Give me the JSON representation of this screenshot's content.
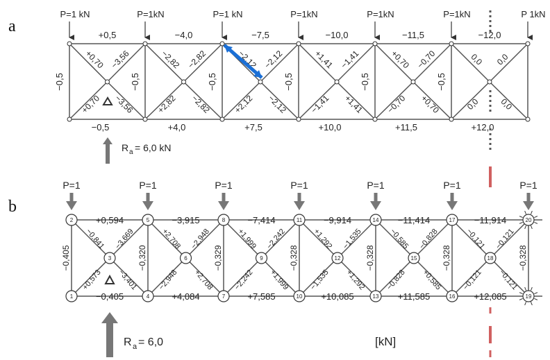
{
  "panel_a": {
    "letter": "a",
    "loads": [
      "P=1 kN",
      "P=1kN",
      "P=1 kN",
      "P=1kN",
      "P=1kN",
      "P=1kN",
      "P 1kN"
    ],
    "top_chords": [
      "+0,5",
      "−4,0",
      "−7,5",
      "−10,0",
      "−11,5",
      "−12,0"
    ],
    "bottom_chords": [
      "−0,5",
      "+4,0",
      "+7,5",
      "+10,0",
      "+11,5",
      "+12,0"
    ],
    "verticals": [
      "−0,5",
      "−0,5",
      "−0,5",
      "−0,5",
      "−0,5",
      "−0,5"
    ],
    "diag_outer": [
      "+0,70",
      "−3,56",
      "−2,82",
      "−2,82",
      "−2,12",
      "−2,12",
      "+1,41",
      "−1,41",
      "+0,70",
      "−0,70",
      "0,0",
      "0,0",
      "+0,70",
      "−3,56",
      "+2,82",
      "−2,82",
      "+2,12",
      "−2,12",
      "−1,41",
      "+1,41",
      "−0,70",
      "+0,70",
      "0,0",
      "0,0"
    ],
    "reaction": "R",
    "reaction_sub": "a",
    "reaction_value": "= 6,0 kN"
  },
  "panel_b": {
    "letter": "b",
    "loads": [
      "P=1",
      "P=1",
      "P=1",
      "P=1",
      "P=1",
      "P=1",
      "P=1"
    ],
    "nodes_top": [
      "2",
      "5",
      "8",
      "11",
      "14",
      "17",
      "20"
    ],
    "nodes_bottom": [
      "1",
      "4",
      "7",
      "10",
      "13",
      "16",
      "19"
    ],
    "nodes_mid": [
      "3",
      "6",
      "9",
      "12",
      "15",
      "18"
    ],
    "top_chords": [
      "+0,594",
      "−3,915",
      "−7,414",
      "−9,914",
      "−11,414",
      "−11,914"
    ],
    "bottom_chords": [
      "−0,405",
      "+4,084",
      "+7,585",
      "+10,085",
      "+11,585",
      "+12,085"
    ],
    "verticals": [
      "−0,405",
      "−0,320",
      "−0,329",
      "−0,328",
      "−0,328",
      "−0,328",
      "−0,328"
    ],
    "diag_labels": [
      "−0,841",
      "−3,669",
      "+0,573",
      "−3,401",
      "+2,708",
      "−2,948",
      "−2,948",
      "+2,708",
      "+1,999",
      "−2,242",
      "−2,242",
      "+1,999",
      "+1,292",
      "−1,535",
      "−1,535",
      "+1,292",
      "−0,585",
      "−0,828",
      "−0,828",
      "+0,585",
      "−0,121",
      "−0,121",
      "−0,121",
      "−0,121"
    ],
    "reaction": "R",
    "reaction_sub": "a",
    "reaction_value": "= 6,0",
    "unit": "[kN]"
  },
  "colors": {
    "line": "#555555",
    "text": "#222222",
    "highlight": "#1a6fd6",
    "arrow_fill": "#777777",
    "dashed_red": "#d06060"
  }
}
